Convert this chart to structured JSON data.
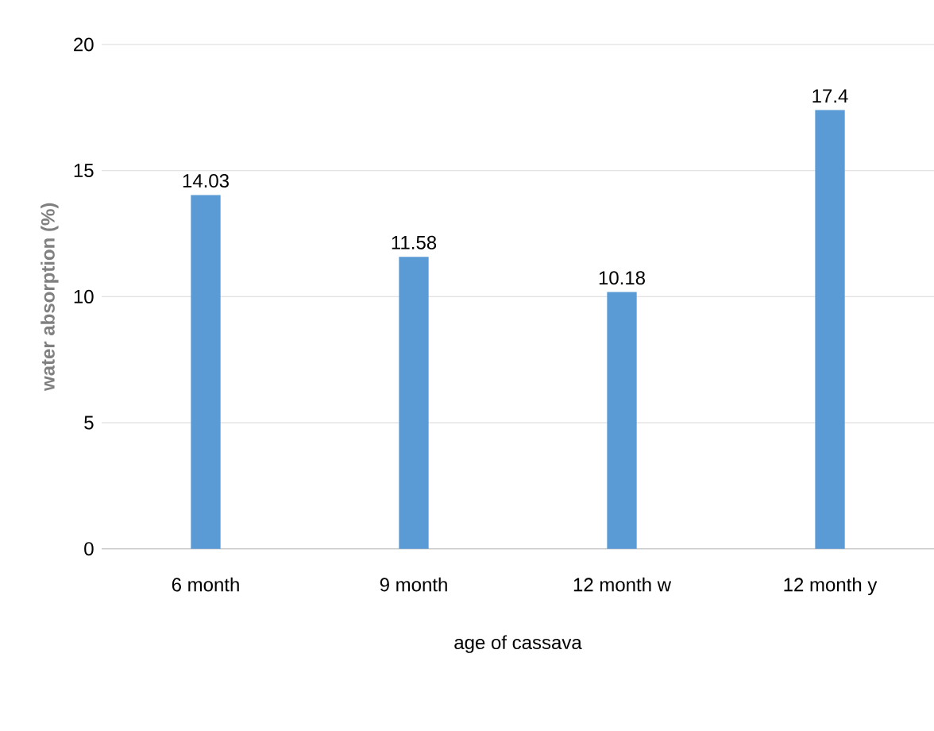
{
  "chart_data": {
    "type": "bar",
    "xlabel": "age of cassava",
    "ylabel": "water absorption (%)",
    "categories": [
      "6 month",
      "9 month",
      "12 month w",
      "12 month y"
    ],
    "values": [
      14.03,
      11.58,
      10.18,
      17.4
    ],
    "color": "#5b9bd5",
    "ylim": [
      0,
      20
    ],
    "yticks": [
      0,
      5,
      10,
      15,
      20
    ],
    "grid": "y",
    "data_labels": true
  }
}
